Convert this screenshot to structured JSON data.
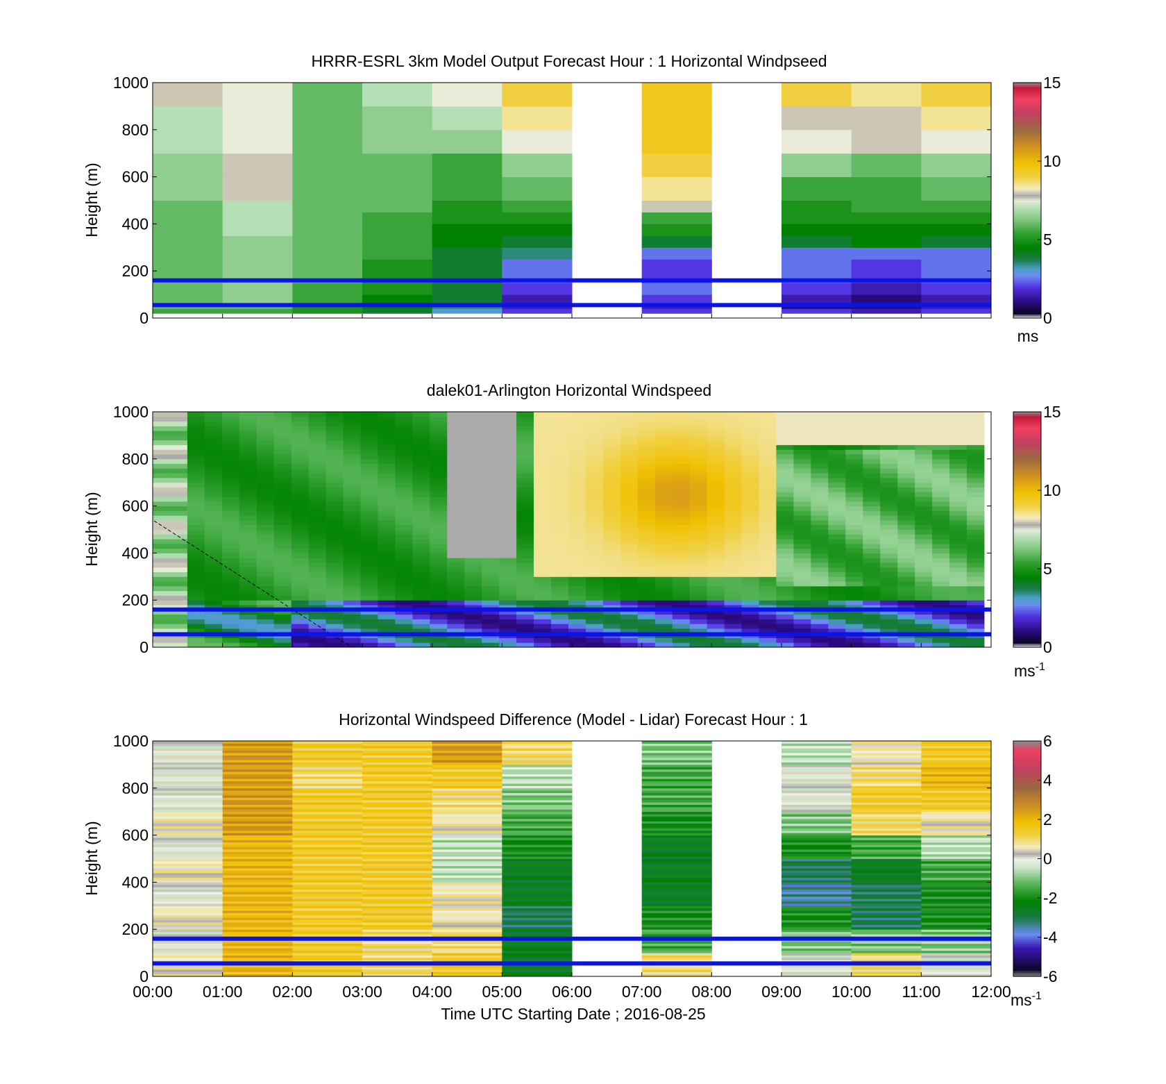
{
  "figure": {
    "xlabel": "Time UTC  Starting Date ; 2016-08-25"
  },
  "chart_data": [
    {
      "type": "heatmap",
      "title": "HRRR-ESRL 3km Model Output   Forecast Hour : 1 Horizontal Windpseed",
      "ylabel": "Height (m)",
      "ylim": [
        0,
        1000
      ],
      "yticks": [
        "0",
        "200",
        "400",
        "600",
        "800",
        "1000"
      ],
      "xlim_hours": [
        0,
        12
      ],
      "x_hours": [
        0.5,
        1.5,
        2.5,
        3.5,
        4.5,
        5.5,
        6.5,
        7.5,
        8.5,
        9.5,
        10.5,
        11.5
      ],
      "y_edges_m": [
        20,
        40,
        60,
        100,
        150,
        250,
        300,
        350,
        400,
        450,
        500,
        600,
        700,
        800,
        900,
        1000
      ],
      "windspeed_ms": [
        [
          5.5,
          5.5,
          5.0,
          4.0,
          3.0,
          2.0,
          null,
          2.0,
          null,
          2.0,
          1.5,
          2.0
        ],
        [
          6.0,
          6.0,
          5.0,
          4.5,
          3.5,
          1.5,
          null,
          1.5,
          null,
          1.0,
          1.0,
          1.5
        ],
        [
          6.0,
          6.5,
          5.5,
          4.5,
          4.0,
          1.5,
          null,
          2.0,
          null,
          1.5,
          1.0,
          1.5
        ],
        [
          6.0,
          6.5,
          5.5,
          5.0,
          4.0,
          2.0,
          null,
          2.5,
          null,
          2.0,
          1.5,
          2.0
        ],
        [
          6.0,
          6.5,
          6.0,
          5.0,
          4.0,
          2.5,
          null,
          2.0,
          null,
          2.5,
          2.0,
          2.5
        ],
        [
          6.0,
          6.5,
          6.0,
          5.5,
          4.0,
          3.5,
          null,
          2.5,
          null,
          2.5,
          2.5,
          2.5
        ],
        [
          6.0,
          6.5,
          6.0,
          5.5,
          4.5,
          4.0,
          null,
          4.0,
          null,
          4.0,
          4.5,
          4.0
        ],
        [
          6.0,
          7.0,
          6.0,
          5.5,
          4.5,
          4.5,
          null,
          5.0,
          null,
          4.5,
          4.5,
          4.5
        ],
        [
          6.0,
          7.0,
          6.0,
          5.5,
          5.0,
          5.0,
          null,
          5.5,
          null,
          5.0,
          5.0,
          5.0
        ],
        [
          6.0,
          7.0,
          6.0,
          6.0,
          5.0,
          5.5,
          null,
          8.0,
          null,
          5.0,
          5.5,
          5.5
        ],
        [
          6.5,
          8.0,
          6.0,
          6.0,
          5.5,
          6.0,
          null,
          8.5,
          null,
          5.5,
          5.5,
          6.0
        ],
        [
          6.5,
          8.0,
          6.0,
          6.0,
          5.5,
          6.5,
          null,
          9.0,
          null,
          6.5,
          6.0,
          6.5
        ],
        [
          7.0,
          7.5,
          6.0,
          6.5,
          6.5,
          7.5,
          null,
          9.5,
          null,
          7.5,
          8.0,
          7.5
        ],
        [
          7.0,
          7.5,
          6.0,
          6.5,
          7.0,
          8.5,
          null,
          9.5,
          null,
          8.0,
          8.0,
          8.5
        ],
        [
          8.0,
          7.5,
          6.0,
          7.0,
          7.5,
          9.0,
          null,
          9.5,
          null,
          9.0,
          8.5,
          9.0
        ],
        [
          8.0,
          8.0,
          6.0,
          8.0,
          9.0,
          9.5,
          null,
          9.5,
          null,
          9.0,
          9.0,
          9.0
        ]
      ],
      "reference_lines_m": [
        160,
        55
      ],
      "colorbar": {
        "min": 0,
        "max": 15,
        "ticks": [
          "0",
          "5",
          "10",
          "15"
        ],
        "unit_label": "ms"
      },
      "colormap": "windspeed"
    },
    {
      "type": "heatmap",
      "title": "dalek01-Arlington  Horizontal Windspeed",
      "ylabel": "Height (m)",
      "ylim": [
        0,
        1000
      ],
      "yticks": [
        "0",
        "200",
        "400",
        "600",
        "800",
        "1000"
      ],
      "xlim_hours": [
        0,
        12
      ],
      "time_range_hours": [
        0,
        11.9
      ],
      "height_range_m": [
        0,
        1000
      ],
      "columns": 48,
      "rows": 50,
      "generator": "windspeed-field",
      "reference_lines_m": [
        160,
        55
      ],
      "colorbar": {
        "min": 0,
        "max": 15,
        "ticks": [
          "0",
          "5",
          "10",
          "15"
        ],
        "unit_label": "ms",
        "unit_exp": "-1"
      },
      "colormap": "windspeed"
    },
    {
      "type": "heatmap",
      "title": "Horizontal Windspeed Difference (Model - Lidar) Forecast Hour : 1",
      "ylabel": "Height (m)",
      "ylim": [
        0,
        1000
      ],
      "yticks": [
        "0",
        "200",
        "400",
        "600",
        "800",
        "1000"
      ],
      "xlim_hours": [
        0,
        12
      ],
      "xticks": [
        "00:00",
        "01:00",
        "02:00",
        "03:00",
        "04:00",
        "05:00",
        "06:00",
        "07:00",
        "08:00",
        "09:00",
        "10:00",
        "11:00",
        "12:00"
      ],
      "y_edges_m": [
        0,
        100,
        200,
        300,
        400,
        500,
        600,
        700,
        800,
        900,
        1000
      ],
      "difference_ms": [
        [
          0.5,
          2.0,
          1.5,
          1.0,
          1.5,
          -2.5,
          null,
          1.0,
          null,
          0.0,
          1.0,
          0.0
        ],
        [
          0.0,
          2.0,
          1.5,
          1.0,
          1.0,
          -2.5,
          null,
          -1.5,
          null,
          -1.0,
          -1.0,
          -1.0
        ],
        [
          0.5,
          2.0,
          1.5,
          1.5,
          0.5,
          -3.0,
          null,
          -2.0,
          null,
          -2.0,
          -3.0,
          -2.0
        ],
        [
          0.0,
          2.0,
          1.5,
          1.5,
          0.5,
          -2.5,
          null,
          -2.5,
          null,
          -3.5,
          -3.0,
          -2.0
        ],
        [
          0.5,
          2.0,
          1.5,
          1.5,
          -0.5,
          -2.5,
          null,
          -2.5,
          null,
          -3.0,
          -2.5,
          -1.5
        ],
        [
          0.0,
          2.0,
          1.5,
          1.5,
          -0.5,
          -2.0,
          null,
          -2.5,
          null,
          -2.0,
          -1.5,
          -0.5
        ],
        [
          0.5,
          2.5,
          1.5,
          1.5,
          0.5,
          -1.5,
          null,
          -2.0,
          null,
          -1.0,
          1.0,
          0.5
        ],
        [
          0.0,
          2.5,
          1.5,
          1.5,
          1.0,
          -1.0,
          null,
          -1.5,
          null,
          0.0,
          1.5,
          1.5
        ],
        [
          0.0,
          2.5,
          1.0,
          1.5,
          1.5,
          -0.5,
          null,
          -1.5,
          null,
          0.0,
          1.0,
          2.0
        ],
        [
          0.0,
          2.5,
          1.5,
          1.5,
          2.5,
          1.0,
          null,
          -1.0,
          null,
          -0.5,
          0.5,
          1.5
        ]
      ],
      "reference_lines_m": [
        160,
        55
      ],
      "colorbar": {
        "min": -6,
        "max": 6,
        "ticks": [
          "-6",
          "-4",
          "-2",
          "0",
          "2",
          "4",
          "6"
        ],
        "unit_label": "ms",
        "unit_exp": "-1"
      },
      "colormap": "difference"
    }
  ],
  "colors": {
    "reference_line": "#0a14e6",
    "no_data": "#ffffff"
  }
}
